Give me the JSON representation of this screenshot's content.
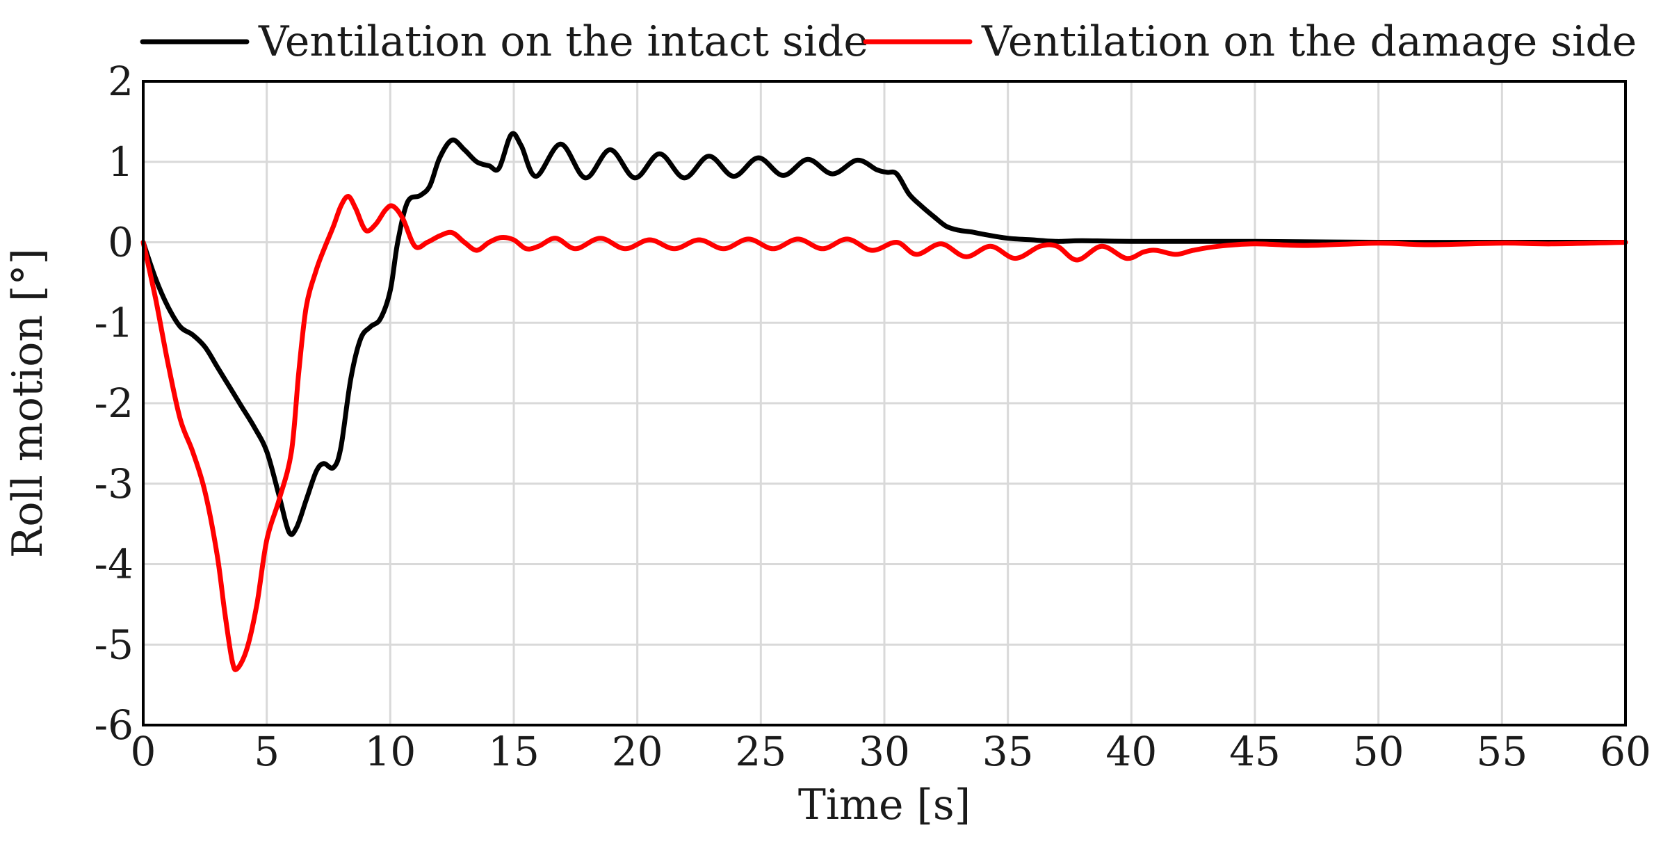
{
  "chart_data": {
    "type": "line",
    "title": "",
    "xlabel": "Time [s]",
    "ylabel": "Roll motion [°]",
    "xlim": [
      0,
      60
    ],
    "ylim": [
      -6,
      2
    ],
    "xticks": [
      0,
      5,
      10,
      15,
      20,
      25,
      30,
      35,
      40,
      45,
      50,
      55,
      60
    ],
    "yticks": [
      2,
      1,
      0,
      -1,
      -2,
      -3,
      -4,
      -5,
      -6
    ],
    "grid": true,
    "legend": "top",
    "series": [
      {
        "name": "Ventilation on the intact side",
        "color": "#000000",
        "points": [
          [
            0,
            0
          ],
          [
            0.5,
            -0.45
          ],
          [
            1,
            -0.8
          ],
          [
            1.5,
            -1.05
          ],
          [
            2,
            -1.15
          ],
          [
            2.5,
            -1.3
          ],
          [
            3,
            -1.55
          ],
          [
            3.5,
            -1.8
          ],
          [
            4,
            -2.05
          ],
          [
            4.5,
            -2.3
          ],
          [
            5,
            -2.6
          ],
          [
            5.5,
            -3.15
          ],
          [
            5.9,
            -3.6
          ],
          [
            6.2,
            -3.55
          ],
          [
            6.6,
            -3.2
          ],
          [
            7,
            -2.85
          ],
          [
            7.3,
            -2.75
          ],
          [
            7.7,
            -2.8
          ],
          [
            8,
            -2.55
          ],
          [
            8.4,
            -1.7
          ],
          [
            8.8,
            -1.2
          ],
          [
            9.2,
            -1.05
          ],
          [
            9.6,
            -0.95
          ],
          [
            10,
            -0.6
          ],
          [
            10.3,
            0.0
          ],
          [
            10.7,
            0.5
          ],
          [
            11.2,
            0.58
          ],
          [
            11.6,
            0.7
          ],
          [
            12,
            1.05
          ],
          [
            12.5,
            1.27
          ],
          [
            13,
            1.15
          ],
          [
            13.5,
            1.0
          ],
          [
            14,
            0.95
          ],
          [
            14.4,
            0.92
          ],
          [
            14.9,
            1.34
          ],
          [
            15.3,
            1.2
          ],
          [
            15.9,
            0.82
          ],
          [
            16.9,
            1.22
          ],
          [
            17.9,
            0.8
          ],
          [
            18.9,
            1.15
          ],
          [
            19.9,
            0.8
          ],
          [
            20.9,
            1.1
          ],
          [
            21.9,
            0.8
          ],
          [
            22.9,
            1.07
          ],
          [
            23.9,
            0.82
          ],
          [
            24.9,
            1.05
          ],
          [
            25.9,
            0.83
          ],
          [
            26.9,
            1.03
          ],
          [
            27.9,
            0.85
          ],
          [
            28.9,
            1.02
          ],
          [
            29.7,
            0.9
          ],
          [
            30.1,
            0.87
          ],
          [
            30.5,
            0.85
          ],
          [
            31,
            0.6
          ],
          [
            31.5,
            0.45
          ],
          [
            32,
            0.32
          ],
          [
            32.5,
            0.2
          ],
          [
            33,
            0.15
          ],
          [
            33.5,
            0.13
          ],
          [
            34,
            0.1
          ],
          [
            35,
            0.05
          ],
          [
            36,
            0.03
          ],
          [
            37,
            0.01
          ],
          [
            38,
            0.02
          ],
          [
            40,
            0.01
          ],
          [
            45,
            0.01
          ],
          [
            50,
            0.0
          ],
          [
            55,
            0.0
          ],
          [
            60,
            0.0
          ]
        ]
      },
      {
        "name": "Ventilation on the damage side",
        "color": "#ff0000",
        "points": [
          [
            0,
            0
          ],
          [
            0.5,
            -0.7
          ],
          [
            1,
            -1.5
          ],
          [
            1.5,
            -2.2
          ],
          [
            2,
            -2.6
          ],
          [
            2.5,
            -3.1
          ],
          [
            3,
            -3.9
          ],
          [
            3.3,
            -4.6
          ],
          [
            3.6,
            -5.2
          ],
          [
            3.8,
            -5.3
          ],
          [
            4.2,
            -5.05
          ],
          [
            4.6,
            -4.5
          ],
          [
            5,
            -3.7
          ],
          [
            5.5,
            -3.2
          ],
          [
            6,
            -2.6
          ],
          [
            6.3,
            -1.6
          ],
          [
            6.6,
            -0.8
          ],
          [
            7,
            -0.35
          ],
          [
            7.3,
            -0.1
          ],
          [
            7.7,
            0.2
          ],
          [
            8,
            0.45
          ],
          [
            8.3,
            0.57
          ],
          [
            8.6,
            0.42
          ],
          [
            9,
            0.15
          ],
          [
            9.4,
            0.22
          ],
          [
            9.8,
            0.4
          ],
          [
            10.1,
            0.45
          ],
          [
            10.5,
            0.3
          ],
          [
            11,
            -0.05
          ],
          [
            11.5,
            0.0
          ],
          [
            12,
            0.08
          ],
          [
            12.5,
            0.12
          ],
          [
            13,
            0.0
          ],
          [
            13.5,
            -0.1
          ],
          [
            14,
            0.0
          ],
          [
            14.5,
            0.06
          ],
          [
            15,
            0.03
          ],
          [
            15.5,
            -0.08
          ],
          [
            16,
            -0.05
          ],
          [
            16.7,
            0.05
          ],
          [
            17.5,
            -0.08
          ],
          [
            18.5,
            0.05
          ],
          [
            19.5,
            -0.08
          ],
          [
            20.5,
            0.03
          ],
          [
            21.5,
            -0.08
          ],
          [
            22.5,
            0.03
          ],
          [
            23.5,
            -0.08
          ],
          [
            24.5,
            0.04
          ],
          [
            25.5,
            -0.08
          ],
          [
            26.5,
            0.04
          ],
          [
            27.5,
            -0.08
          ],
          [
            28.5,
            0.04
          ],
          [
            29.5,
            -0.1
          ],
          [
            30.5,
            0.0
          ],
          [
            31.3,
            -0.15
          ],
          [
            32.3,
            -0.02
          ],
          [
            33.3,
            -0.18
          ],
          [
            34.3,
            -0.05
          ],
          [
            35.3,
            -0.2
          ],
          [
            36.3,
            -0.05
          ],
          [
            37,
            -0.05
          ],
          [
            37.8,
            -0.22
          ],
          [
            38.8,
            -0.05
          ],
          [
            39.8,
            -0.2
          ],
          [
            40.5,
            -0.12
          ],
          [
            41,
            -0.1
          ],
          [
            41.8,
            -0.15
          ],
          [
            42.5,
            -0.1
          ],
          [
            43.5,
            -0.05
          ],
          [
            45,
            -0.02
          ],
          [
            47,
            -0.04
          ],
          [
            50,
            -0.01
          ],
          [
            52,
            -0.03
          ],
          [
            55,
            -0.01
          ],
          [
            57,
            -0.02
          ],
          [
            60,
            0.0
          ]
        ]
      }
    ]
  }
}
